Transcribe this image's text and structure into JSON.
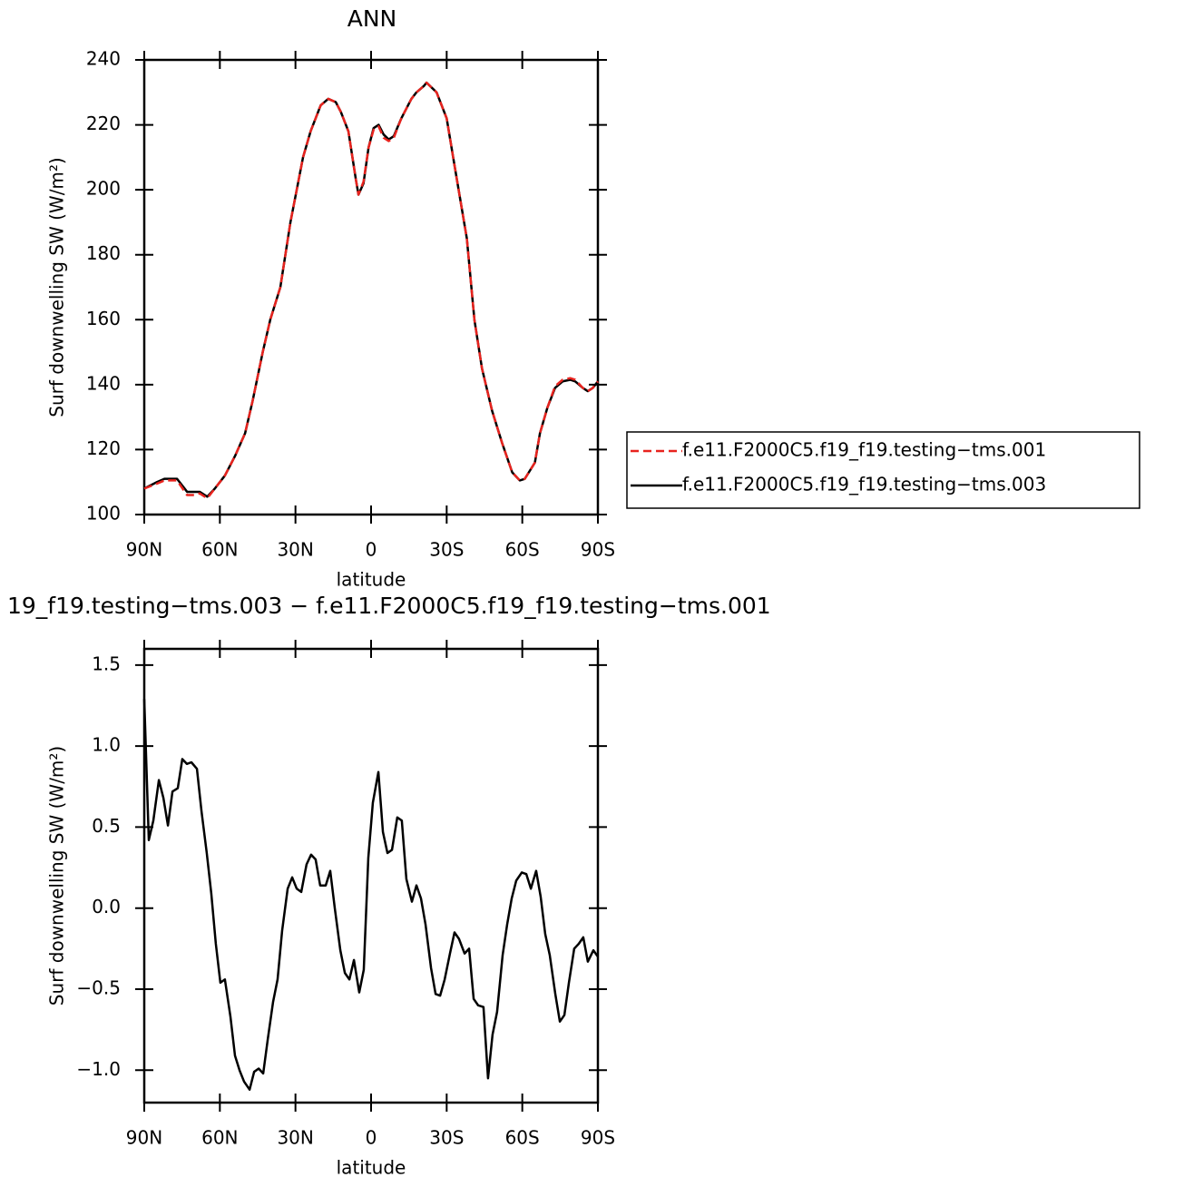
{
  "chart_data": [
    {
      "type": "line",
      "title": "ANN",
      "xlabel": "latitude",
      "ylabel": "Surf downwelling SW (W/m²)",
      "x": [
        90,
        85,
        82,
        77,
        73,
        70,
        68,
        65,
        62,
        58,
        54,
        50,
        47,
        43,
        40,
        36,
        32,
        27,
        24,
        20,
        17,
        14,
        12,
        9,
        6,
        5,
        3,
        1,
        -1,
        -3,
        -5,
        -7,
        -9,
        -12,
        -16,
        -18,
        -21,
        -22,
        -26,
        -30,
        -33,
        -38,
        -41,
        -44,
        -48,
        -52,
        -56,
        -59,
        -61,
        -65,
        -67,
        -70,
        -73,
        -76,
        -79,
        -81,
        -84,
        -86,
        -88,
        -90
      ],
      "series": [
        {
          "name": "f.e11.F2000C5.f19_f19.testing−tms.001",
          "color": "#e8231e",
          "dashed": true,
          "values": [
            108,
            109.5,
            110.5,
            110.5,
            106,
            106,
            106.5,
            105,
            108,
            112,
            118,
            125,
            135,
            150,
            160,
            170,
            190,
            210,
            218,
            226,
            228,
            227,
            224,
            218,
            203,
            198.5,
            202.5,
            213,
            218.5,
            219.5,
            216,
            215,
            216,
            222,
            228,
            230,
            232,
            233,
            230,
            222,
            208,
            185,
            160,
            145,
            132,
            122,
            113,
            110.5,
            111,
            116,
            125,
            133,
            139.5,
            141.5,
            142,
            141.5,
            139,
            138,
            139,
            141
          ]
        },
        {
          "name": "f.e11.F2000C5.f19_f19.testing−tms.003",
          "color": "#000000",
          "dashed": false,
          "values": [
            108,
            110,
            111,
            111,
            107,
            107,
            107,
            105.5,
            108,
            112,
            118,
            125,
            135,
            150,
            160,
            170,
            190,
            210,
            218,
            226,
            228,
            227,
            224,
            218,
            203,
            198.5,
            202,
            213,
            219,
            220,
            217,
            215.5,
            216.5,
            222,
            228,
            230,
            232,
            233,
            230,
            222,
            208,
            185,
            160,
            145,
            132,
            122,
            113,
            110.5,
            111,
            116,
            125,
            133,
            139,
            141,
            141.5,
            141,
            139,
            138,
            139,
            141
          ]
        }
      ],
      "xlim": [
        90,
        -90
      ],
      "xticks": [
        {
          "value": 90,
          "label": "90N"
        },
        {
          "value": 60,
          "label": "60N"
        },
        {
          "value": 30,
          "label": "30N"
        },
        0,
        {
          "value": -30,
          "label": "30S"
        },
        {
          "value": -60,
          "label": "60S"
        },
        {
          "value": -90,
          "label": "90S"
        }
      ],
      "ylim": [
        100,
        240
      ],
      "yticks": [
        100,
        120,
        140,
        160,
        180,
        200,
        220,
        240
      ],
      "legend": "right"
    },
    {
      "type": "line",
      "title": "19_f19.testing−tms.003 − f.e11.F2000C5.f19_f19.testing−tms.001",
      "xlabel": "latitude",
      "ylabel": "Surf downwelling SW (W/m²)",
      "x": [
        90,
        88.2,
        86.4,
        84.2,
        82.4,
        80.6,
        78.8,
        76.7,
        74.9,
        73.1,
        71.3,
        69.1,
        67.3,
        65.2,
        63.4,
        61.6,
        59.8,
        58,
        55.8,
        54,
        52.2,
        50.4,
        48.2,
        46.4,
        44.6,
        42.8,
        41,
        38.9,
        37.1,
        35.3,
        33.1,
        31.3,
        29.5,
        27.7,
        25.6,
        23.8,
        22,
        20.2,
        18,
        16.2,
        14.4,
        12.2,
        10.4,
        8.6,
        6.8,
        4.7,
        2.9,
        1.1,
        -0.7,
        -2.9,
        -4.7,
        -6.5,
        -8.3,
        -10.4,
        -12.2,
        -14,
        -16.2,
        -18,
        -19.8,
        -21.6,
        -23.8,
        -25.6,
        -27.4,
        -29.2,
        -31.3,
        -33.1,
        -34.9,
        -37.1,
        -38.9,
        -40.7,
        -42.5,
        -44.6,
        -46.4,
        -48.2,
        -50,
        -52.2,
        -54,
        -55.8,
        -57.6,
        -59.8,
        -61.6,
        -63.4,
        -65.5,
        -67.3,
        -69.1,
        -70.9,
        -73.1,
        -74.9,
        -76.7,
        -78.5,
        -80.6,
        -82.4,
        -84.2,
        -86,
        -88.2,
        -90
      ],
      "series": [
        {
          "color": "#000000",
          "dashed": false,
          "values": [
            1.29,
            0.42,
            0.54,
            0.79,
            0.68,
            0.51,
            0.72,
            0.74,
            0.92,
            0.89,
            0.9,
            0.86,
            0.6,
            0.34,
            0.09,
            -0.22,
            -0.46,
            -0.44,
            -0.67,
            -0.91,
            -1.0,
            -1.07,
            -1.12,
            -1.01,
            -0.99,
            -1.02,
            -0.81,
            -0.58,
            -0.44,
            -0.14,
            0.12,
            0.19,
            0.12,
            0.1,
            0.27,
            0.33,
            0.3,
            0.14,
            0.14,
            0.23,
            0.0,
            -0.26,
            -0.4,
            -0.44,
            -0.32,
            -0.52,
            -0.38,
            0.31,
            0.65,
            0.84,
            0.47,
            0.34,
            0.36,
            0.56,
            0.54,
            0.18,
            0.04,
            0.14,
            0.06,
            -0.1,
            -0.37,
            -0.53,
            -0.54,
            -0.44,
            -0.28,
            -0.15,
            -0.19,
            -0.28,
            -0.25,
            -0.56,
            -0.6,
            -0.61,
            -1.05,
            -0.78,
            -0.64,
            -0.29,
            -0.1,
            0.06,
            0.17,
            0.22,
            0.21,
            0.12,
            0.23,
            0.07,
            -0.16,
            -0.29,
            -0.53,
            -0.7,
            -0.66,
            -0.46,
            -0.25,
            -0.22,
            -0.18,
            -0.33,
            -0.26,
            -0.3
          ]
        }
      ],
      "xlim": [
        90,
        -90
      ],
      "xticks": [
        {
          "value": 90,
          "label": "90N"
        },
        {
          "value": 60,
          "label": "60N"
        },
        {
          "value": 30,
          "label": "30N"
        },
        0,
        {
          "value": -30,
          "label": "30S"
        },
        {
          "value": -60,
          "label": "60S"
        },
        {
          "value": -90,
          "label": "90S"
        }
      ],
      "ylim": [
        -1.2,
        1.6
      ],
      "yticks": [
        {
          "value": -1.0,
          "label": "−1.0"
        },
        {
          "value": -0.5,
          "label": "−0.5"
        },
        {
          "value": 0,
          "label": "0.0"
        },
        {
          "value": 0.5,
          "label": "0.5"
        },
        {
          "value": 1.0,
          "label": "1.0"
        },
        {
          "value": 1.5,
          "label": "1.5"
        }
      ]
    }
  ]
}
